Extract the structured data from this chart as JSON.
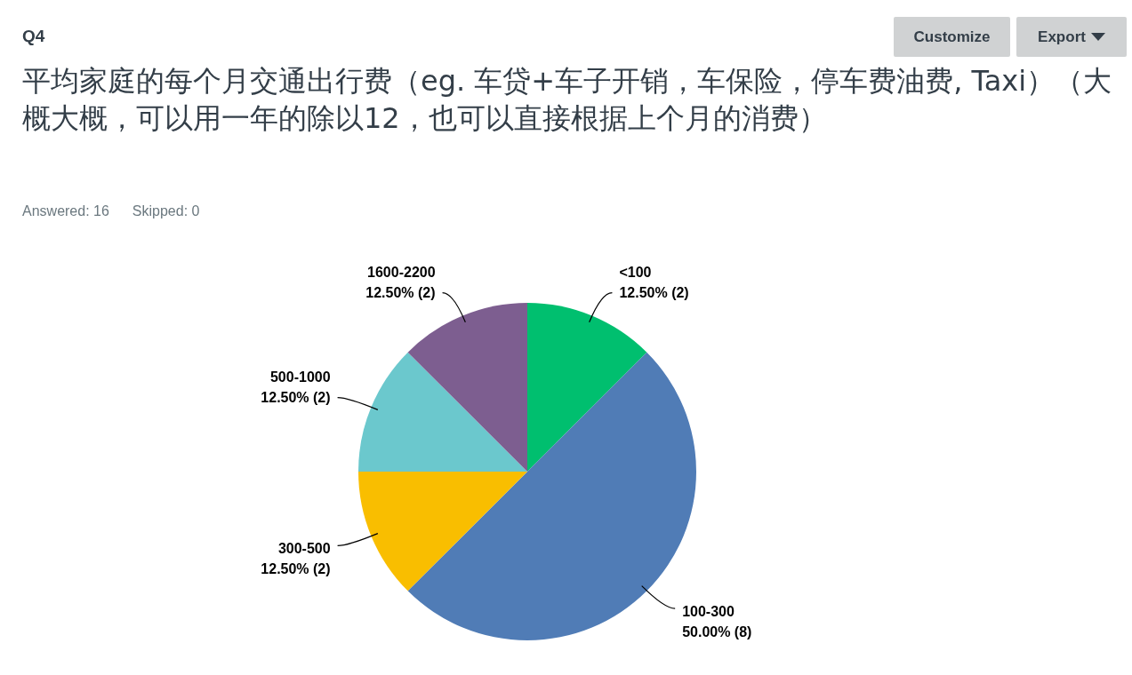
{
  "chart_data": {
    "type": "pie",
    "subtitle": "Q4",
    "title": "平均家庭的每个月交通出行费（eg. 车贷+车子开销，车保险，停车费油费, Taxi）（大概大概，可以用一年的除以12，也可以直接根据上个月的消费）",
    "annotations": [
      "Answered: 16",
      "Skipped: 0",
      "Customize",
      "Export"
    ],
    "categories": [
      "<100",
      "100-300",
      "300-500",
      "500-1000",
      "1600-2200"
    ],
    "values": [
      12.5,
      50,
      12.5,
      12.5,
      12.5
    ],
    "colors": [
      "#00bf6f",
      "#507cb6",
      "#f9be00",
      "#6bc8cd",
      "#7d5e90"
    ],
    "value_labels": [
      "12.50% (2)",
      "50.00% (8)",
      "12.50% (2)",
      "12.50% (2)",
      "12.50% (2)"
    ]
  }
}
